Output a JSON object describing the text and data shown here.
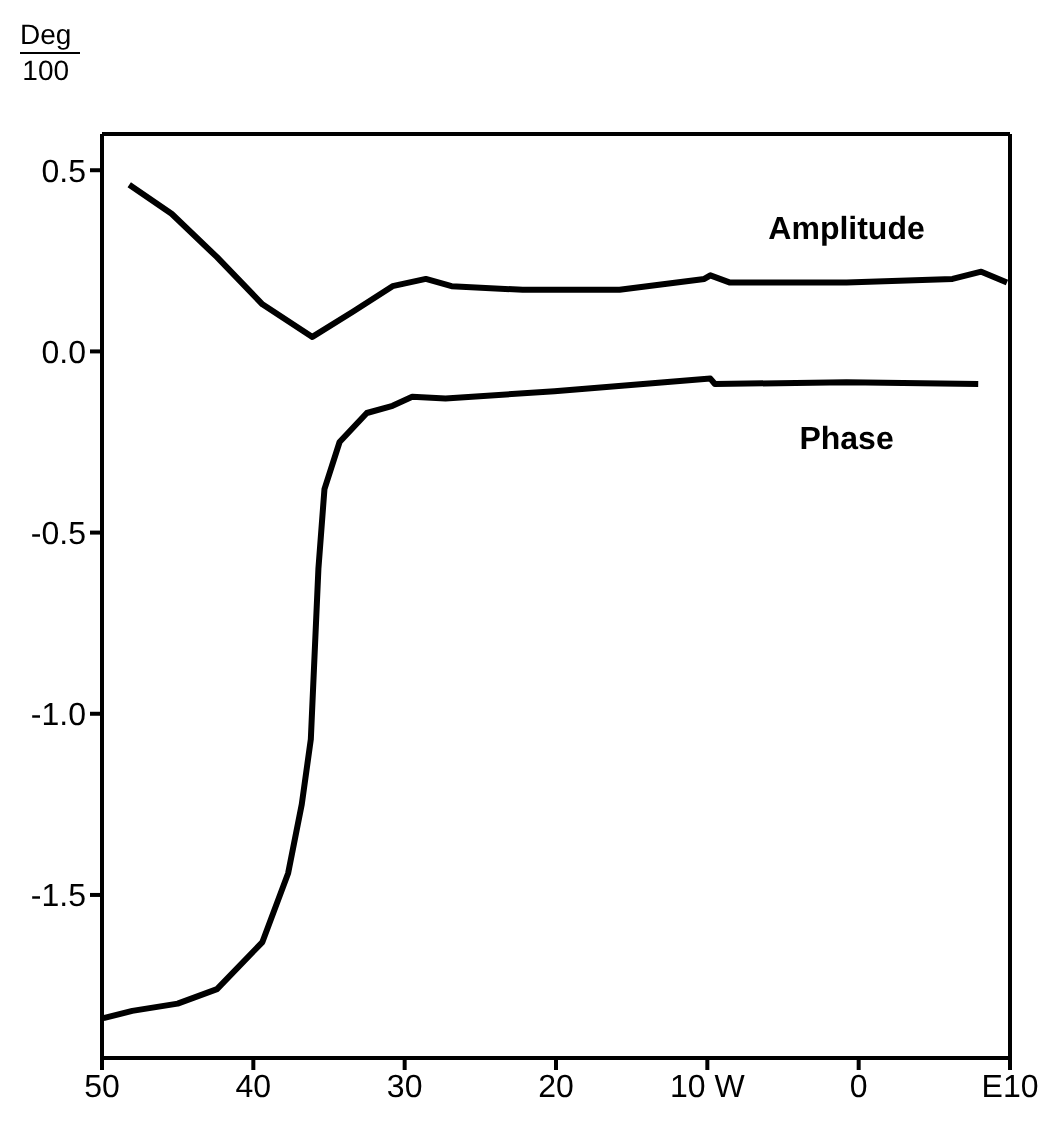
{
  "chart_data": {
    "type": "line",
    "ylabel": "Deg\n100",
    "xlim": [
      50,
      -10
    ],
    "xticks": [
      50,
      40,
      30,
      20,
      {
        "value": 10,
        "label": "10 W"
      },
      0,
      {
        "value": -10,
        "label": "E10"
      }
    ],
    "ylim": [
      -1.95,
      0.6
    ],
    "yticks": [
      {
        "value": 0.5,
        "label": "0.5"
      },
      {
        "value": 0,
        "label": "0.0"
      },
      {
        "value": -0.5,
        "label": "-0.5"
      },
      {
        "value": -1,
        "label": "-1.0"
      },
      {
        "value": -1.5,
        "label": "-1.5"
      }
    ],
    "grid": false,
    "legend": false,
    "marker": "none",
    "line_style": "solid",
    "series": [
      {
        "name": "Amplitude",
        "color": "#000000",
        "x": [
          48.2,
          45.4,
          42.4,
          39.4,
          36.1,
          33.4,
          30.8,
          28.6,
          26.9,
          22.2,
          15.8,
          10.2,
          9.8,
          8.5,
          0.8,
          -6.2,
          -8.1,
          -9.8
        ],
        "values": [
          0.46,
          0.38,
          0.26,
          0.13,
          0.04,
          0.11,
          0.18,
          0.2,
          0.18,
          0.17,
          0.17,
          0.2,
          0.21,
          0.19,
          0.19,
          0.2,
          0.22,
          0.19
        ]
      },
      {
        "name": "Phase",
        "color": "#000000",
        "x": [
          49.9,
          48,
          45,
          42.4,
          39.4,
          37.7,
          36.8,
          36.2,
          35.7,
          35.3,
          34.3,
          32.5,
          30.8,
          29.5,
          27.3,
          20.1,
          9.8,
          9.5,
          0.8,
          -7.9
        ],
        "values": [
          -1.84,
          -1.82,
          -1.8,
          -1.76,
          -1.63,
          -1.44,
          -1.25,
          -1.07,
          -0.6,
          -0.38,
          -0.25,
          -0.17,
          -0.15,
          -0.125,
          -0.13,
          -0.11,
          -0.075,
          -0.09,
          -0.085,
          -0.09
        ]
      }
    ]
  }
}
